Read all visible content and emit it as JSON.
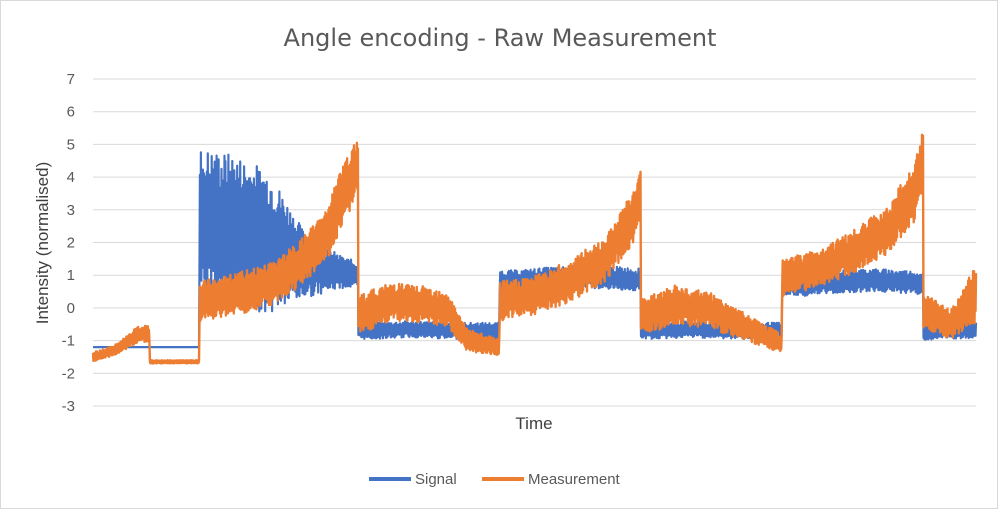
{
  "chart_data": {
    "type": "line",
    "title": "Angle encoding - Raw Measurement",
    "xlabel": "Time",
    "ylabel": "Intensity (normalised)",
    "ylim": [
      -3,
      7
    ],
    "yticks": [
      "-3",
      "-2",
      "-1",
      "0",
      "1",
      "2",
      "3",
      "4",
      "5",
      "6",
      "7"
    ],
    "grid": true,
    "legend_position": "bottom",
    "colors": {
      "Signal": "#4472c4",
      "Measurement": "#ed7d31",
      "grid": "#d9d9d9"
    },
    "series": [
      {
        "name": "Signal",
        "x": [
          0,
          1,
          2,
          3,
          3.01,
          4,
          5,
          6,
          7,
          7.5,
          7.51,
          8,
          9,
          10,
          11,
          11.5,
          11.51,
          12,
          13,
          14,
          15,
          15.5,
          15.51,
          16,
          17,
          18,
          19,
          19.5,
          19.51,
          20,
          21,
          22,
          23,
          23.5,
          23.51,
          24,
          25
        ],
        "y": [
          -1.2,
          -1.2,
          -1.2,
          -1.2,
          2.6,
          2.4,
          2.0,
          1.3,
          1.1,
          1.0,
          -0.7,
          -0.7,
          -0.65,
          -0.7,
          -0.7,
          -0.7,
          0.8,
          0.8,
          0.9,
          0.95,
          0.9,
          0.85,
          -0.7,
          -0.7,
          -0.65,
          -0.7,
          -0.7,
          -0.7,
          0.75,
          0.7,
          0.8,
          0.85,
          0.8,
          0.75,
          -0.75,
          -0.7,
          -0.7
        ],
        "envelope": [
          0,
          0,
          0,
          0,
          2.3,
          2.3,
          2.2,
          1.0,
          0.5,
          0.4,
          0.25,
          0.25,
          0.25,
          0.25,
          0.25,
          0.25,
          0.35,
          0.35,
          0.35,
          0.35,
          0.35,
          0.35,
          0.25,
          0.25,
          0.25,
          0.25,
          0.25,
          0.25,
          0.35,
          0.35,
          0.35,
          0.35,
          0.35,
          0.35,
          0.25,
          0.25,
          0.25
        ]
      },
      {
        "name": "Measurement",
        "x": [
          0,
          0.6,
          0.6,
          1.3,
          1.6,
          1.61,
          2.0,
          3.0,
          3.01,
          4,
          5,
          5.8,
          6.6,
          7.0,
          7.5,
          7.51,
          8.5,
          10,
          10.6,
          11.5,
          11.51,
          12.5,
          13.5,
          14.5,
          15.3,
          15.5,
          15.51,
          16.5,
          17.5,
          18.5,
          19.5,
          19.51,
          20.5,
          21.5,
          22.5,
          23.3,
          23.5,
          23.51,
          24.3,
          25
        ],
        "y": [
          -1.5,
          -1.3,
          -1.3,
          -0.8,
          -0.8,
          -1.65,
          -1.65,
          -1.65,
          0.2,
          0.4,
          0.7,
          1.3,
          2.2,
          3.2,
          4.4,
          -0.2,
          0.2,
          0.0,
          -1.0,
          -1.2,
          0.2,
          0.4,
          0.8,
          1.5,
          2.8,
          3.5,
          -0.3,
          0.1,
          -0.1,
          -0.6,
          -1.1,
          0.9,
          1.2,
          1.7,
          2.4,
          3.6,
          4.7,
          -0.1,
          -0.5,
          0.4
        ],
        "envelope": [
          0.15,
          0.15,
          0.15,
          0.25,
          0.25,
          0.05,
          0.05,
          0.05,
          0.6,
          0.65,
          0.65,
          0.7,
          0.8,
          1.0,
          0.8,
          0.6,
          0.6,
          0.55,
          0.35,
          0.25,
          0.6,
          0.6,
          0.65,
          0.7,
          0.8,
          0.7,
          0.6,
          0.6,
          0.55,
          0.4,
          0.3,
          0.55,
          0.6,
          0.65,
          0.75,
          0.9,
          1.0,
          0.55,
          0.45,
          0.9
        ]
      }
    ]
  }
}
